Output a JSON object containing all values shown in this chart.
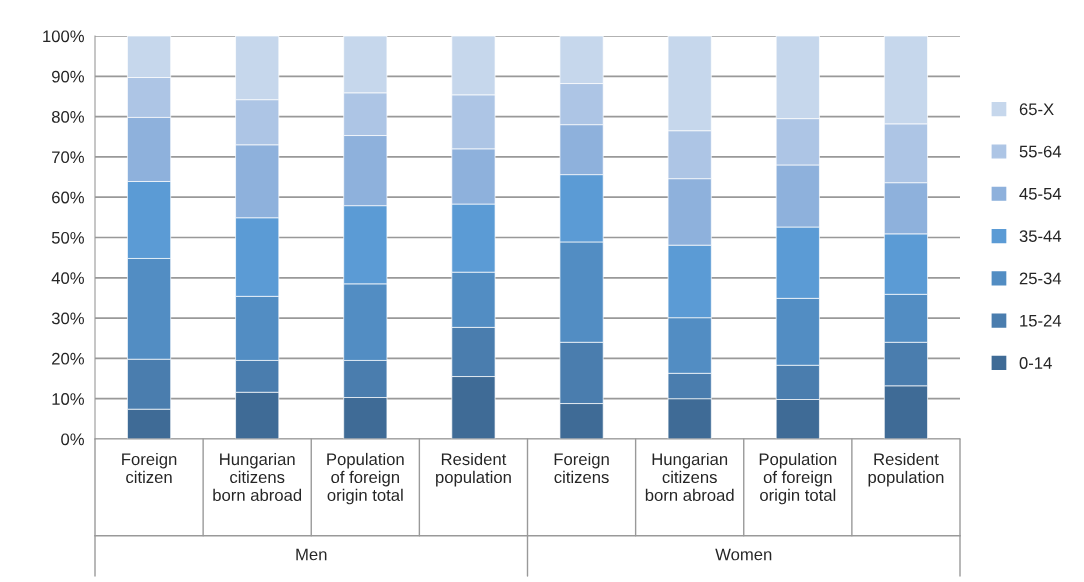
{
  "chart_data": {
    "type": "bar",
    "stacked": true,
    "categories": [
      "Foreign\ncitizen",
      "Hungarian\ncitizens\nborn abroad",
      "Population\nof foreign\norigin total",
      "Resident\npopulation",
      "Foreign\ncitizens",
      "Hungarian\ncitizens\nborn abroad",
      "Population\nof foreign\norigin total",
      "Resident\npopulation"
    ],
    "series": [
      {
        "name": "0-14",
        "color": "#3f6b96",
        "values": [
          7.4,
          11.6,
          10.3,
          15.5,
          8.8,
          10.0,
          9.8,
          13.2
        ]
      },
      {
        "name": "15-24",
        "color": "#4a7dae",
        "values": [
          12.4,
          7.9,
          9.2,
          12.2,
          15.2,
          6.3,
          8.5,
          10.8
        ]
      },
      {
        "name": "25-34",
        "color": "#528dc3",
        "values": [
          25.0,
          15.9,
          19.0,
          13.7,
          24.9,
          13.8,
          16.6,
          11.9
        ]
      },
      {
        "name": "35-44",
        "color": "#5b9bd5",
        "values": [
          19.1,
          19.5,
          19.4,
          16.9,
          16.7,
          18.0,
          17.7,
          15.0
        ]
      },
      {
        "name": "45-54",
        "color": "#8eb1dc",
        "values": [
          15.9,
          18.1,
          17.4,
          13.7,
          12.4,
          16.5,
          15.4,
          12.7
        ]
      },
      {
        "name": "55-64",
        "color": "#adc5e5",
        "values": [
          9.9,
          11.2,
          10.6,
          13.4,
          10.2,
          11.9,
          11.5,
          14.6
        ]
      },
      {
        "name": "65-X",
        "color": "#c6d7ec",
        "values": [
          10.3,
          15.8,
          14.1,
          14.6,
          11.8,
          23.5,
          20.5,
          21.8
        ]
      }
    ],
    "ylim": [
      0,
      100
    ],
    "yticks": [
      {
        "value": 0,
        "label": "0%"
      },
      {
        "value": 10,
        "label": "10%"
      },
      {
        "value": 20,
        "label": "20%"
      },
      {
        "value": 30,
        "label": "30%"
      },
      {
        "value": 40,
        "label": "40%"
      },
      {
        "value": 50,
        "label": "50%"
      },
      {
        "value": 60,
        "label": "60%"
      },
      {
        "value": 70,
        "label": "70%"
      },
      {
        "value": 80,
        "label": "80%"
      },
      {
        "value": 90,
        "label": "90%"
      },
      {
        "value": 100,
        "label": "100%"
      }
    ],
    "grid": "y",
    "legend": "right",
    "annotations": [
      "Men",
      "Women"
    ]
  }
}
